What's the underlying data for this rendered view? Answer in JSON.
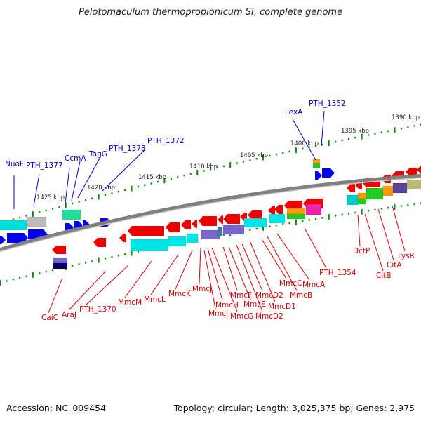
{
  "title": "Pelotomaculum thermopropionicum SI, complete genome",
  "footer": {
    "accession": "Accession: NC_009454",
    "topology": "Topology: circular; Length: 3,025,375 bp; Genes: 2,975"
  },
  "colors": {
    "forward_gene": "#0000ee",
    "reverse_gene": "#ee0000",
    "ruler_ticks": "#118811",
    "backbone": "#888888",
    "top_label": "#0000cc",
    "bottom_label": "#dd0000"
  },
  "ruler_labels": [
    "1425 kbp",
    "1420 kbp",
    "1415 kbp",
    "1410 kbp",
    "1405 kbp",
    "1400 kbp",
    "1395 kbp",
    "1390 kbp"
  ],
  "top_genes": [
    "NuoF",
    "PTH_1377",
    "CcmA",
    "TagG",
    "PTH_1373",
    "PTH_1372",
    "LexA",
    "PTH_1352"
  ],
  "bottom_genes": [
    "CaiC",
    "AraJ",
    "PTH_1370",
    "MmcM",
    "MmcL",
    "MmcK",
    "MmcJ",
    "MmcI",
    "MmcH",
    "MmcG",
    "MmcF",
    "MmcE",
    "MmcD2",
    "MmcD2",
    "MmcD1",
    "MmcC",
    "MmcB",
    "MmcA",
    "PTH_1354",
    "DctP",
    "CitB",
    "CitA",
    "LysR"
  ]
}
